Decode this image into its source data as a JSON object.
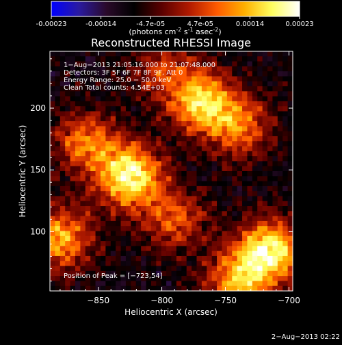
{
  "colorbar": {
    "ticks": [
      "-0.00023",
      "-0.00014",
      "-4.7e-05",
      "4.7e-05",
      "0.00014",
      "0.00023"
    ],
    "unit_label": "(photons cm",
    "unit_sup1": "-2",
    "unit_mid1": " s",
    "unit_sup2": "-1",
    "unit_mid2": " asec",
    "unit_sup3": "-2",
    "unit_end": ")",
    "range": [
      -0.00023,
      0.00023
    ],
    "colormap": [
      "#0000ff",
      "#2a1aa0",
      "#2a0a2a",
      "#000000",
      "#5a0000",
      "#b01a00",
      "#ff5a00",
      "#ffb000",
      "#ffff60",
      "#ffffff"
    ]
  },
  "chart_data": {
    "type": "heatmap",
    "title": "Reconstructed RHESSI Image",
    "xlabel": "Heliocentric X (arcsec)",
    "ylabel": "Heliocentric Y (arcsec)",
    "x_range": [
      -888,
      -697
    ],
    "y_range": [
      52,
      246
    ],
    "x_ticks": [
      -850,
      -800,
      -750,
      -700
    ],
    "x_tick_labels": [
      "−850",
      "−800",
      "−750",
      "−700"
    ],
    "y_ticks": [
      100,
      150,
      200
    ],
    "y_tick_labels": [
      "100",
      "150",
      "200"
    ],
    "annotations": [
      "1−Aug−2013 21:05:16.000 to 21:07:48.000",
      "Detectors: 3F 5F 6F 7F 8F 9F, Att 0",
      "Energy Range: 25.0 − 50.0 keV",
      "Clean    Total counts: 4.54E+03"
    ],
    "peak_label": "Position of Peak = [−723,54]",
    "peak": {
      "x": -723,
      "y": 54
    },
    "sources": [
      {
        "x": -825,
        "y": 145,
        "peak": 1.0
      },
      {
        "x": -860,
        "y": 172,
        "peak": 0.6
      },
      {
        "x": -880,
        "y": 95,
        "peak": 0.75
      },
      {
        "x": -768,
        "y": 205,
        "peak": 0.85
      },
      {
        "x": -738,
        "y": 185,
        "peak": 0.55
      },
      {
        "x": -790,
        "y": 110,
        "peak": 0.5
      },
      {
        "x": -715,
        "y": 85,
        "peak": 0.95
      },
      {
        "x": -740,
        "y": 60,
        "peak": 0.7
      },
      {
        "x": -800,
        "y": 230,
        "peak": 0.4
      }
    ]
  },
  "footer": {
    "timestamp": "2−Aug−2013 02:22"
  }
}
